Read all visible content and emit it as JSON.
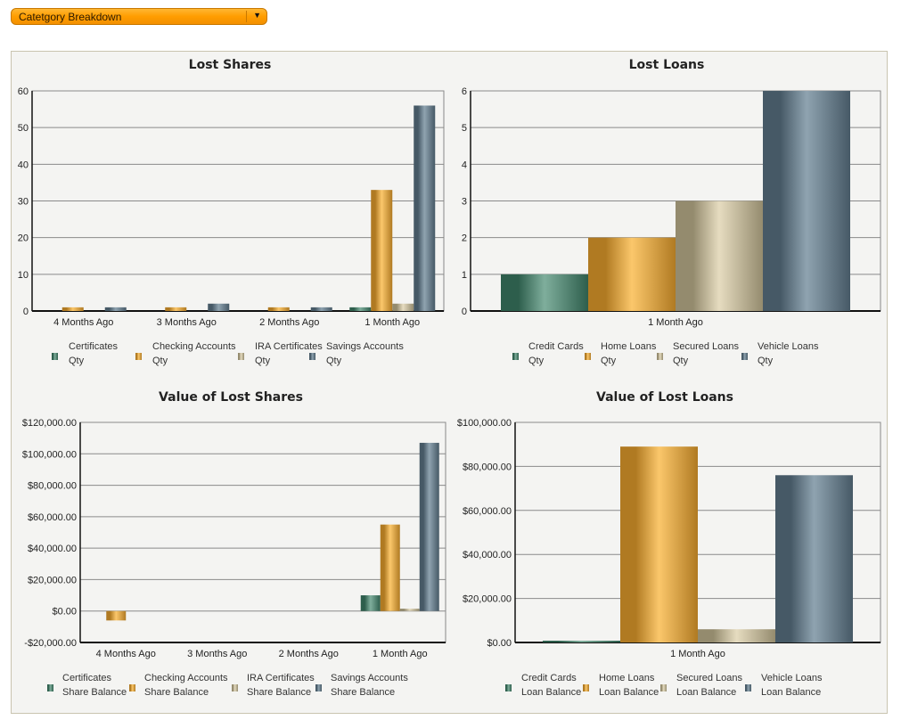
{
  "dropdown": {
    "selected": "Catetgory Breakdown",
    "arrow_icon": "triangle-down"
  },
  "colors": {
    "green": [
      "#2d5e4c",
      "#7fae9c",
      "#2d5e4c"
    ],
    "orange": [
      "#b07a22",
      "#fbc76b",
      "#b07a22"
    ],
    "tan": [
      "#948b6e",
      "#e6dcc0",
      "#948b6e"
    ],
    "slate": [
      "#465966",
      "#8fa3b0",
      "#465966"
    ]
  },
  "chart_data": [
    {
      "id": "lost-shares",
      "type": "bar",
      "title": "Lost Shares",
      "categories": [
        "4 Months Ago",
        "3 Months Ago",
        "2 Months Ago",
        "1 Month Ago"
      ],
      "ylim": [
        0,
        60
      ],
      "yticks": [
        0,
        10,
        20,
        30,
        40,
        50,
        60
      ],
      "ytick_labels": [
        "0",
        "10",
        "20",
        "30",
        "40",
        "50",
        "60"
      ],
      "grid": true,
      "legend": "bottom",
      "series": [
        {
          "name": "Certificates",
          "sub": "Qty",
          "color": "green",
          "values": [
            0,
            0,
            0,
            1
          ]
        },
        {
          "name": "Checking Accounts",
          "sub": "Qty",
          "color": "orange",
          "values": [
            1,
            1,
            1,
            33
          ]
        },
        {
          "name": "IRA Certificates",
          "sub": "Qty",
          "color": "tan",
          "values": [
            0,
            0,
            0,
            2
          ]
        },
        {
          "name": "Savings Accounts",
          "sub": "Qty",
          "color": "slate",
          "values": [
            1,
            2,
            1,
            56
          ]
        }
      ]
    },
    {
      "id": "lost-loans",
      "type": "bar",
      "title": "Lost Loans",
      "categories": [
        "1 Month Ago"
      ],
      "ylim": [
        0,
        6
      ],
      "yticks": [
        0,
        1,
        2,
        3,
        4,
        5,
        6
      ],
      "ytick_labels": [
        "0",
        "1",
        "2",
        "3",
        "4",
        "5",
        "6"
      ],
      "grid": true,
      "legend": "bottom",
      "series": [
        {
          "name": "Credit Cards",
          "sub": "Qty",
          "color": "green",
          "values": [
            1
          ]
        },
        {
          "name": "Home Loans",
          "sub": "Qty",
          "color": "orange",
          "values": [
            2
          ]
        },
        {
          "name": "Secured Loans",
          "sub": "Qty",
          "color": "tan",
          "values": [
            3
          ]
        },
        {
          "name": "Vehicle Loans",
          "sub": "Qty",
          "color": "slate",
          "values": [
            6
          ]
        }
      ]
    },
    {
      "id": "value-lost-shares",
      "type": "bar",
      "title": "Value of Lost Shares",
      "categories": [
        "4 Months Ago",
        "3 Months Ago",
        "2 Months Ago",
        "1 Month Ago"
      ],
      "ylim": [
        -20000,
        120000
      ],
      "yticks": [
        -20000,
        0,
        20000,
        40000,
        60000,
        80000,
        100000,
        120000
      ],
      "ytick_labels": [
        "-$20,000.00",
        "$0.00",
        "$20,000.00",
        "$40,000.00",
        "$60,000.00",
        "$80,000.00",
        "$100,000.00",
        "$120,000.00"
      ],
      "grid": true,
      "legend": "bottom",
      "series": [
        {
          "name": "Certificates",
          "sub": "Share Balance",
          "color": "green",
          "values": [
            0,
            0,
            0,
            10000
          ]
        },
        {
          "name": "Checking Accounts",
          "sub": "Share Balance",
          "color": "orange",
          "values": [
            -6000,
            0,
            0,
            55000
          ]
        },
        {
          "name": "IRA Certificates",
          "sub": "Share Balance",
          "color": "tan",
          "values": [
            0,
            0,
            0,
            1500
          ]
        },
        {
          "name": "Savings Accounts",
          "sub": "Share Balance",
          "color": "slate",
          "values": [
            0,
            0,
            0,
            107000
          ]
        }
      ]
    },
    {
      "id": "value-lost-loans",
      "type": "bar",
      "title": "Value of Lost Loans",
      "categories": [
        "1 Month Ago"
      ],
      "ylim": [
        0,
        100000
      ],
      "yticks": [
        0,
        20000,
        40000,
        60000,
        80000,
        100000
      ],
      "ytick_labels": [
        "$0.00",
        "$20,000.00",
        "$40,000.00",
        "$60,000.00",
        "$80,000.00",
        "$100,000.00"
      ],
      "grid": true,
      "legend": "bottom",
      "series": [
        {
          "name": "Credit Cards",
          "sub": "Loan Balance",
          "color": "green",
          "values": [
            600
          ]
        },
        {
          "name": "Home Loans",
          "sub": "Loan Balance",
          "color": "orange",
          "values": [
            89000
          ]
        },
        {
          "name": "Secured Loans",
          "sub": "Loan Balance",
          "color": "tan",
          "values": [
            6000
          ]
        },
        {
          "name": "Vehicle Loans",
          "sub": "Loan Balance",
          "color": "slate",
          "values": [
            76000
          ]
        }
      ]
    }
  ]
}
